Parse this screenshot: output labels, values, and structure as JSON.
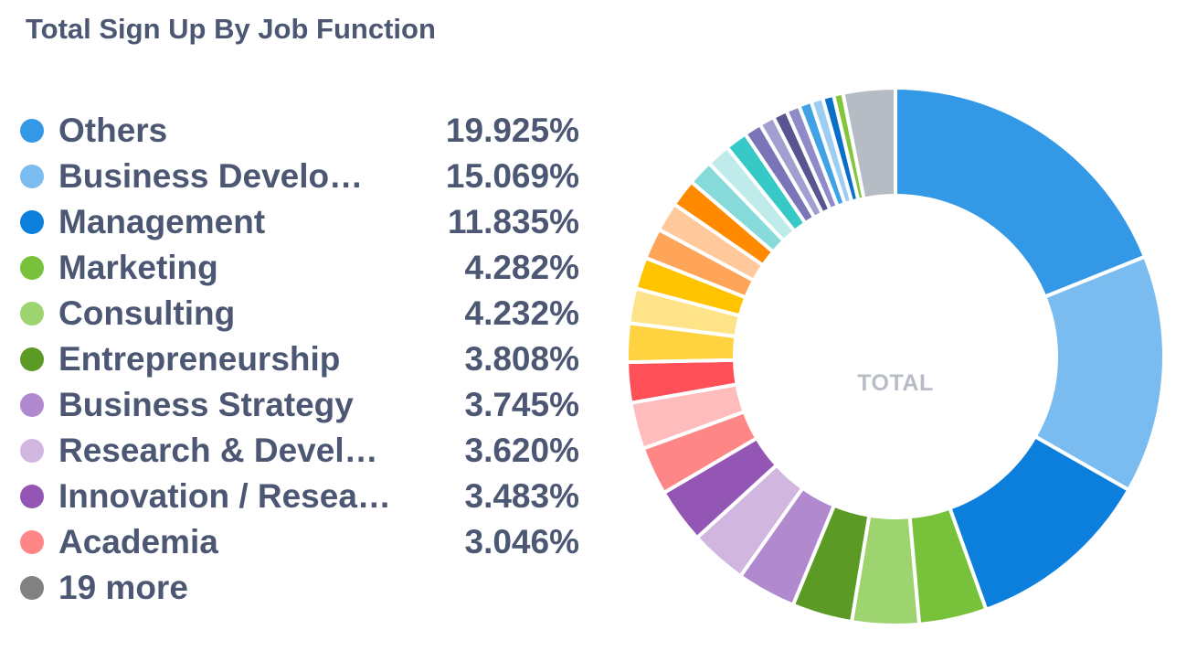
{
  "card": {
    "title": "Total Sign Up By Job Function"
  },
  "center": {
    "value": "",
    "label": "TOTAL"
  },
  "legend": {
    "items": [
      {
        "label": "Others",
        "value": "19.925%",
        "color": "#3399e6"
      },
      {
        "label": "Business Develo…",
        "value": "15.069%",
        "color": "#7abcf0"
      },
      {
        "label": "Management",
        "value": "11.835%",
        "color": "#0b7fdb"
      },
      {
        "label": "Marketing",
        "value": "4.282%",
        "color": "#77c23a"
      },
      {
        "label": "Consulting",
        "value": "4.232%",
        "color": "#9ed46f"
      },
      {
        "label": "Entrepreneurship",
        "value": "3.808%",
        "color": "#5a9a25"
      },
      {
        "label": "Business Strategy",
        "value": "3.745%",
        "color": "#b089cf"
      },
      {
        "label": "Research & Devel…",
        "value": "3.620%",
        "color": "#d1b7e0"
      },
      {
        "label": "Innovation / Resea…",
        "value": "3.483%",
        "color": "#9456b4"
      },
      {
        "label": "Academia",
        "value": "3.046%",
        "color": "#ff8686"
      }
    ],
    "more": {
      "label": "19 more",
      "color": "#828282"
    }
  },
  "chart_data": {
    "type": "pie",
    "donut": true,
    "title": "Total Sign Up By Job Function",
    "center_label": "TOTAL",
    "slices": [
      {
        "label": "Others",
        "percent": 19.925,
        "color": "#3399e6"
      },
      {
        "label": "Business Develo…",
        "percent": 15.069,
        "color": "#7abcf0"
      },
      {
        "label": "Management",
        "percent": 11.835,
        "color": "#0b7fdb"
      },
      {
        "label": "Marketing",
        "percent": 4.282,
        "color": "#77c23a"
      },
      {
        "label": "Consulting",
        "percent": 4.232,
        "color": "#9ed46f"
      },
      {
        "label": "Entrepreneurship",
        "percent": 3.808,
        "color": "#5a9a25"
      },
      {
        "label": "Business Strategy",
        "percent": 3.745,
        "color": "#b089cf"
      },
      {
        "label": "Research & Devel…",
        "percent": 3.62,
        "color": "#d1b7e0"
      },
      {
        "label": "Innovation / Resea…",
        "percent": 3.483,
        "color": "#9456b4"
      },
      {
        "label": "Academia",
        "percent": 3.046,
        "color": "#ff8686"
      },
      {
        "percent": 2.95,
        "color": "#ffbcbc"
      },
      {
        "percent": 2.55,
        "color": "#ff4f58"
      },
      {
        "percent": 2.45,
        "color": "#ffd23f"
      },
      {
        "percent": 2.2,
        "color": "#ffe388"
      },
      {
        "percent": 2.0,
        "color": "#ffc300"
      },
      {
        "percent": 1.95,
        "color": "#ffa55a"
      },
      {
        "percent": 1.85,
        "color": "#ffc99b"
      },
      {
        "percent": 1.75,
        "color": "#ff8a00"
      },
      {
        "percent": 1.6,
        "color": "#86dad9"
      },
      {
        "percent": 1.5,
        "color": "#bfebea"
      },
      {
        "percent": 1.4,
        "color": "#36c9c6"
      },
      {
        "percent": 1.1,
        "color": "#7a74b8"
      },
      {
        "percent": 0.95,
        "color": "#a19ed0"
      },
      {
        "percent": 0.9,
        "color": "#585591"
      },
      {
        "percent": 0.85,
        "color": "#8f8ac8"
      },
      {
        "percent": 0.8,
        "color": "#3fa2e5"
      },
      {
        "percent": 0.75,
        "color": "#9dcdf2"
      },
      {
        "percent": 0.7,
        "color": "#0a6fc8"
      },
      {
        "percent": 0.6,
        "color": "#84c63b"
      },
      {
        "label": "19 more (remainder)",
        "percent": 3.3,
        "color": "#b6bcc4"
      }
    ]
  }
}
